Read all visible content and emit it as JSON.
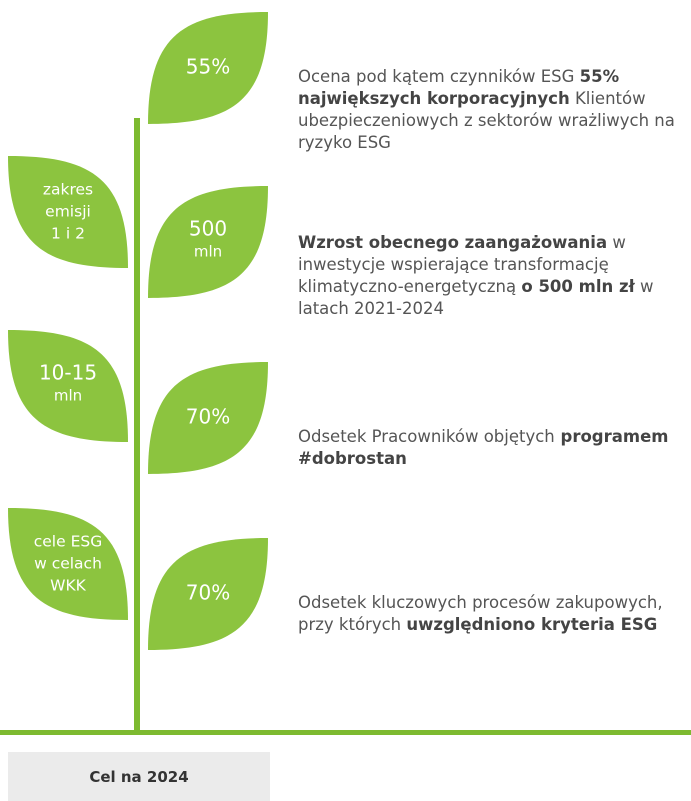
{
  "leaves_right": [
    {
      "lines": [
        "55%"
      ]
    },
    {
      "lines": [
        "500",
        "mln"
      ]
    },
    {
      "lines": [
        "70%"
      ]
    },
    {
      "lines": [
        "70%"
      ]
    }
  ],
  "leaves_left": [
    {
      "lines": [
        "zakres",
        "emisji",
        "1 i 2"
      ]
    },
    {
      "lines": [
        "10-15",
        "mln"
      ]
    },
    {
      "lines": [
        "cele ESG",
        "w celach",
        "WKK"
      ]
    }
  ],
  "descriptions": [
    {
      "segments": [
        {
          "text": "Ocena pod kątem czynników ESG ",
          "bold": false
        },
        {
          "text": "55% największych korporacyjnych",
          "bold": true
        },
        {
          "text": " Klientów ubezpieczeniowych z sektorów wrażliwych na ryzyko ESG",
          "bold": false
        }
      ]
    },
    {
      "segments": [
        {
          "text": "Wzrost obecnego zaangażowania",
          "bold": true
        },
        {
          "text": " w inwestycje wspierające transformację klimatyczno-energetyczną ",
          "bold": false
        },
        {
          "text": "o 500 mln zł",
          "bold": true
        },
        {
          "text": " w latach 2021-2024",
          "bold": false
        }
      ]
    },
    {
      "segments": [
        {
          "text": "Odsetek Pracowników objętych",
          "bold": false
        },
        {
          "text": " programem #dobrostan",
          "bold": true
        }
      ]
    },
    {
      "segments": [
        {
          "text": "Odsetek kluczowych procesów zakupowych, przy których ",
          "bold": false
        },
        {
          "text": "uwzględniono kryteria ESG",
          "bold": true
        }
      ]
    }
  ],
  "footer": {
    "label": "Cel na 2024"
  }
}
